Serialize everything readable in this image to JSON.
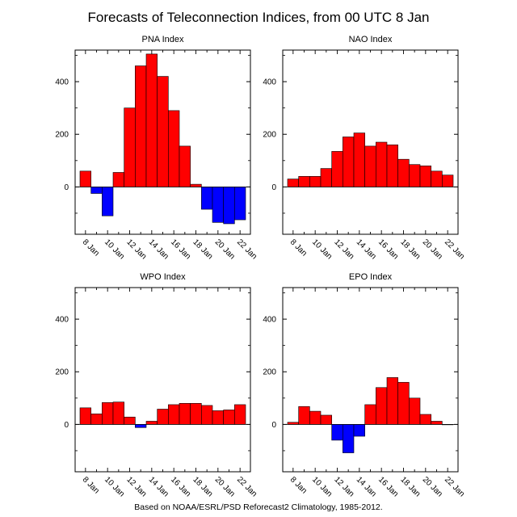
{
  "title": "Forecasts of Teleconnection Indices, from 00 UTC 8 Jan",
  "footer": "Based on NOAA/ESRL/PSD Reforecast2 Climatology, 1985-2012.",
  "colors": {
    "positive": "#ff0000",
    "negative": "#0000ff",
    "outline": "#000000"
  },
  "chart_data": [
    {
      "type": "bar",
      "title": "PNA Index",
      "x": [
        "8 Jan",
        "9 Jan",
        "10 Jan",
        "11 Jan",
        "12 Jan",
        "13 Jan",
        "14 Jan",
        "15 Jan",
        "16 Jan",
        "17 Jan",
        "18 Jan",
        "19 Jan",
        "20 Jan",
        "21 Jan",
        "22 Jan"
      ],
      "x_tick_labels": [
        "8 Jan",
        "10 Jan",
        "12 Jan",
        "14 Jan",
        "16 Jan",
        "18 Jan",
        "20 Jan",
        "22 Jan"
      ],
      "values": [
        60,
        -25,
        -110,
        55,
        300,
        460,
        505,
        420,
        290,
        155,
        10,
        -85,
        -135,
        -140,
        -125
      ],
      "ylim": [
        -180,
        520
      ],
      "y_ticks": [
        0,
        200,
        400
      ]
    },
    {
      "type": "bar",
      "title": "NAO Index",
      "x": [
        "8 Jan",
        "9 Jan",
        "10 Jan",
        "11 Jan",
        "12 Jan",
        "13 Jan",
        "14 Jan",
        "15 Jan",
        "16 Jan",
        "17 Jan",
        "18 Jan",
        "19 Jan",
        "20 Jan",
        "21 Jan",
        "22 Jan"
      ],
      "x_tick_labels": [
        "8 Jan",
        "10 Jan",
        "12 Jan",
        "14 Jan",
        "16 Jan",
        "18 Jan",
        "20 Jan",
        "22 Jan"
      ],
      "values": [
        30,
        40,
        40,
        70,
        135,
        190,
        205,
        155,
        170,
        160,
        105,
        85,
        80,
        60,
        45
      ],
      "ylim": [
        -180,
        520
      ],
      "y_ticks": [
        0,
        200,
        400
      ]
    },
    {
      "type": "bar",
      "title": "WPO Index",
      "x": [
        "8 Jan",
        "9 Jan",
        "10 Jan",
        "11 Jan",
        "12 Jan",
        "13 Jan",
        "14 Jan",
        "15 Jan",
        "16 Jan",
        "17 Jan",
        "18 Jan",
        "19 Jan",
        "20 Jan",
        "21 Jan",
        "22 Jan"
      ],
      "x_tick_labels": [
        "8 Jan",
        "10 Jan",
        "12 Jan",
        "14 Jan",
        "16 Jan",
        "18 Jan",
        "20 Jan",
        "22 Jan"
      ],
      "values": [
        63,
        40,
        83,
        85,
        28,
        -12,
        12,
        58,
        75,
        80,
        80,
        72,
        52,
        55,
        75
      ],
      "ylim": [
        -180,
        520
      ],
      "y_ticks": [
        0,
        200,
        400
      ]
    },
    {
      "type": "bar",
      "title": "EPO Index",
      "x": [
        "8 Jan",
        "9 Jan",
        "10 Jan",
        "11 Jan",
        "12 Jan",
        "13 Jan",
        "14 Jan",
        "15 Jan",
        "16 Jan",
        "17 Jan",
        "18 Jan",
        "19 Jan",
        "20 Jan",
        "21 Jan",
        "22 Jan"
      ],
      "x_tick_labels": [
        "8 Jan",
        "10 Jan",
        "12 Jan",
        "14 Jan",
        "16 Jan",
        "18 Jan",
        "20 Jan",
        "22 Jan"
      ],
      "values": [
        8,
        68,
        50,
        35,
        -60,
        -108,
        -45,
        75,
        140,
        178,
        160,
        100,
        38,
        12,
        0
      ],
      "ylim": [
        -180,
        520
      ],
      "y_ticks": [
        0,
        200,
        400
      ]
    }
  ]
}
